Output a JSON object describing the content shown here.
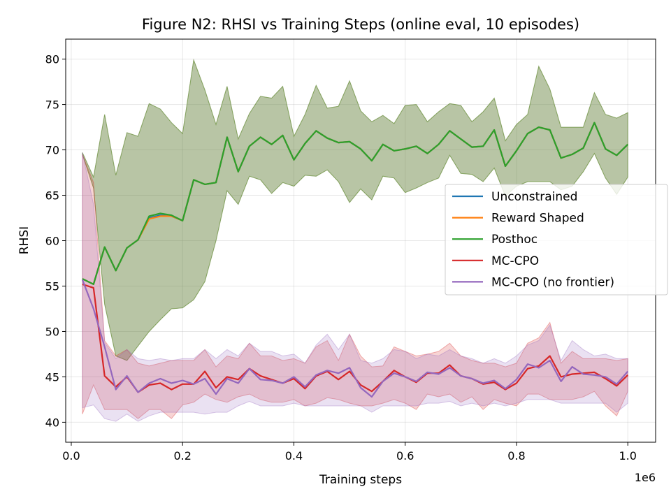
{
  "chart_data": {
    "type": "line",
    "title": "Figure N2: RHSI vs Training Steps (online eval, 10 episodes)",
    "xlabel": "Training steps",
    "ylabel": "RHSI",
    "x_offset_label": "1e6",
    "xlim": [
      -0.01,
      1.05
    ],
    "ylim": [
      37.8,
      82.2
    ],
    "xticks": [
      0.0,
      0.2,
      0.4,
      0.6,
      0.8,
      1.0
    ],
    "xtick_labels": [
      "0.0",
      "0.2",
      "0.4",
      "0.6",
      "0.8",
      "1.0"
    ],
    "yticks": [
      40,
      45,
      50,
      55,
      60,
      65,
      70,
      75,
      80
    ],
    "ytick_labels": [
      "40",
      "45",
      "50",
      "55",
      "60",
      "65",
      "70",
      "75",
      "80"
    ],
    "grid": true,
    "legend_position": "center-right",
    "x": [
      0.02,
      0.04,
      0.06,
      0.08,
      0.1,
      0.12,
      0.14,
      0.16,
      0.18,
      0.2,
      0.22,
      0.24,
      0.26,
      0.28,
      0.3,
      0.32,
      0.34,
      0.36,
      0.38,
      0.4,
      0.42,
      0.44,
      0.46,
      0.48,
      0.5,
      0.52,
      0.54,
      0.56,
      0.58,
      0.6,
      0.62,
      0.64,
      0.66,
      0.68,
      0.7,
      0.72,
      0.74,
      0.76,
      0.78,
      0.8,
      0.82,
      0.84,
      0.86,
      0.88,
      0.9,
      0.92,
      0.94,
      0.96,
      0.98,
      1.0
    ],
    "series": [
      {
        "name": "Unconstrained",
        "color": "#1f77b4",
        "values": [
          55.8,
          55.2,
          59.3,
          56.7,
          59.2,
          60.1,
          62.5,
          62.8,
          62.7,
          62.2,
          66.7,
          66.2,
          66.4,
          71.4,
          67.6,
          70.4,
          71.4,
          70.6,
          71.6,
          68.9,
          70.7,
          72.1,
          71.3,
          70.8,
          70.9,
          70.1,
          68.8,
          70.6,
          69.9,
          70.1,
          70.4,
          69.6,
          70.6,
          72.1,
          71.2,
          70.3,
          70.4,
          72.2,
          68.2,
          69.9,
          71.8,
          72.5,
          72.2,
          69.1,
          69.5,
          70.2,
          73.0,
          70.1,
          69.4,
          70.6
        ],
        "lower": [
          69.5,
          65.8,
          53.0,
          47.3,
          46.8,
          48.4,
          50.0,
          51.3,
          52.5,
          52.6,
          53.5,
          55.5,
          60.0,
          65.5,
          64.0,
          67.1,
          66.7,
          65.2,
          66.4,
          66.0,
          67.2,
          67.1,
          67.8,
          66.5,
          64.2,
          65.7,
          64.5,
          67.1,
          66.9,
          65.3,
          65.8,
          66.4,
          66.9,
          69.4,
          67.4,
          67.3,
          66.5,
          68.0,
          64.9,
          66.0,
          66.5,
          66.5,
          66.5,
          65.6,
          66.0,
          67.6,
          69.6,
          66.9,
          65.1,
          67.0
        ],
        "upper": [
          69.7,
          67.0,
          73.9,
          67.2,
          71.9,
          71.5,
          75.1,
          74.5,
          73.0,
          71.8,
          79.9,
          76.6,
          72.8,
          77.0,
          71.2,
          74.0,
          75.9,
          75.7,
          77.0,
          71.5,
          73.9,
          77.1,
          74.6,
          74.8,
          77.6,
          74.3,
          73.1,
          73.8,
          72.9,
          74.9,
          75.0,
          73.1,
          74.2,
          75.1,
          74.9,
          73.1,
          74.2,
          75.7,
          71.0,
          72.8,
          73.9,
          79.2,
          76.7,
          72.5,
          72.5,
          72.5,
          76.3,
          73.9,
          73.5,
          74.1
        ]
      },
      {
        "name": "Reward Shaped",
        "color": "#ff7f0e",
        "values": [
          55.8,
          55.2,
          59.3,
          56.7,
          59.2,
          60.1,
          62.4,
          62.7,
          62.7,
          62.2,
          66.7,
          66.2,
          66.4,
          71.4,
          67.6,
          70.4,
          71.4,
          70.6,
          71.6,
          68.9,
          70.7,
          72.1,
          71.3,
          70.8,
          70.9,
          70.1,
          68.8,
          70.6,
          69.9,
          70.1,
          70.4,
          69.6,
          70.6,
          72.1,
          71.2,
          70.3,
          70.4,
          72.2,
          68.2,
          69.9,
          71.8,
          72.5,
          72.2,
          69.1,
          69.5,
          70.2,
          73.0,
          70.1,
          69.4,
          70.6
        ],
        "lower": [
          69.5,
          65.8,
          53.0,
          47.3,
          46.8,
          48.4,
          50.0,
          51.3,
          52.5,
          52.6,
          53.5,
          55.5,
          60.0,
          65.5,
          64.0,
          67.1,
          66.7,
          65.2,
          66.4,
          66.0,
          67.2,
          67.1,
          67.8,
          66.5,
          64.2,
          65.7,
          64.5,
          67.1,
          66.9,
          65.3,
          65.8,
          66.4,
          66.9,
          69.4,
          67.4,
          67.3,
          66.5,
          68.0,
          64.9,
          66.0,
          66.5,
          66.5,
          66.5,
          65.6,
          66.0,
          67.6,
          69.6,
          66.9,
          65.1,
          67.0
        ],
        "upper": [
          69.7,
          67.0,
          73.9,
          67.2,
          71.9,
          71.5,
          75.1,
          74.5,
          73.0,
          71.8,
          79.9,
          76.6,
          72.8,
          77.0,
          71.2,
          74.0,
          75.9,
          75.7,
          77.0,
          71.5,
          73.9,
          77.1,
          74.6,
          74.8,
          77.6,
          74.3,
          73.1,
          73.8,
          72.9,
          74.9,
          75.0,
          73.1,
          74.2,
          75.1,
          74.9,
          73.1,
          74.2,
          75.7,
          71.0,
          72.8,
          73.9,
          79.2,
          76.7,
          72.5,
          72.5,
          72.5,
          76.3,
          73.9,
          73.5,
          74.1
        ]
      },
      {
        "name": "Posthoc",
        "color": "#2ca02c",
        "values": [
          55.8,
          55.2,
          59.3,
          56.7,
          59.2,
          60.1,
          62.7,
          63.0,
          62.8,
          62.2,
          66.7,
          66.2,
          66.4,
          71.4,
          67.6,
          70.4,
          71.4,
          70.6,
          71.6,
          68.9,
          70.7,
          72.1,
          71.3,
          70.8,
          70.9,
          70.1,
          68.8,
          70.6,
          69.9,
          70.1,
          70.4,
          69.6,
          70.6,
          72.1,
          71.2,
          70.3,
          70.4,
          72.2,
          68.2,
          69.9,
          71.8,
          72.5,
          72.2,
          69.1,
          69.5,
          70.2,
          73.0,
          70.1,
          69.4,
          70.6
        ],
        "lower": [
          69.5,
          65.8,
          53.0,
          47.3,
          46.8,
          48.4,
          50.0,
          51.3,
          52.5,
          52.6,
          53.5,
          55.5,
          60.0,
          65.5,
          64.0,
          67.1,
          66.7,
          65.2,
          66.4,
          66.0,
          67.2,
          67.1,
          67.8,
          66.5,
          64.2,
          65.7,
          64.5,
          67.1,
          66.9,
          65.3,
          65.8,
          66.4,
          66.9,
          69.4,
          67.4,
          67.3,
          66.5,
          68.0,
          64.9,
          66.0,
          66.5,
          66.5,
          66.5,
          65.6,
          66.0,
          67.6,
          69.6,
          66.9,
          65.1,
          67.0
        ],
        "upper": [
          69.7,
          67.0,
          73.9,
          67.2,
          71.9,
          71.5,
          75.1,
          74.5,
          73.0,
          71.8,
          79.9,
          76.6,
          72.8,
          77.0,
          71.2,
          74.0,
          75.9,
          75.7,
          77.0,
          71.5,
          73.9,
          77.1,
          74.6,
          74.8,
          77.6,
          74.3,
          73.1,
          73.8,
          72.9,
          74.9,
          75.0,
          73.1,
          74.2,
          75.1,
          74.9,
          73.1,
          74.2,
          75.7,
          71.0,
          72.8,
          73.9,
          79.2,
          76.7,
          72.5,
          72.5,
          72.5,
          76.3,
          73.9,
          73.5,
          74.1
        ]
      },
      {
        "name": "MC-CPO",
        "color": "#d62728",
        "values": [
          55.2,
          54.8,
          45.1,
          43.9,
          45.0,
          43.3,
          44.1,
          44.3,
          43.6,
          44.2,
          44.2,
          45.6,
          43.8,
          45.0,
          44.7,
          45.9,
          45.1,
          44.7,
          44.3,
          44.8,
          43.7,
          45.1,
          45.6,
          44.7,
          45.6,
          44.1,
          43.4,
          44.5,
          45.7,
          45.0,
          44.4,
          45.4,
          45.4,
          46.3,
          45.1,
          44.8,
          44.2,
          44.4,
          43.6,
          44.3,
          45.9,
          46.2,
          47.3,
          45.0,
          45.3,
          45.4,
          45.5,
          44.8,
          44.0,
          45.2
        ],
        "lower": [
          40.9,
          44.1,
          41.4,
          41.4,
          41.4,
          40.4,
          41.4,
          41.4,
          40.4,
          41.9,
          42.2,
          43.1,
          42.5,
          42.2,
          42.8,
          43.1,
          42.5,
          42.2,
          42.2,
          42.5,
          41.8,
          42.1,
          42.7,
          42.5,
          42.1,
          41.8,
          41.8,
          42.1,
          42.5,
          42.1,
          41.4,
          43.1,
          42.8,
          43.1,
          42.2,
          42.8,
          41.4,
          42.5,
          42.1,
          41.8,
          43.1,
          43.1,
          42.5,
          42.5,
          42.5,
          42.8,
          43.4,
          41.8,
          40.7,
          43.4
        ],
        "upper": [
          69.5,
          66.4,
          49.0,
          47.3,
          48.0,
          46.5,
          46.2,
          46.5,
          46.8,
          46.8,
          46.8,
          48.0,
          46.1,
          47.3,
          47.0,
          48.7,
          47.3,
          47.3,
          46.8,
          47.0,
          46.5,
          48.3,
          49.0,
          46.8,
          49.7,
          47.3,
          46.1,
          46.2,
          48.3,
          47.8,
          47.3,
          47.5,
          47.8,
          48.7,
          47.3,
          46.8,
          46.5,
          46.5,
          46.1,
          46.5,
          48.7,
          49.3,
          51.0,
          46.5,
          47.8,
          47.0,
          47.0,
          47.0,
          46.8,
          47.0
        ]
      },
      {
        "name": "MC-CPO (no frontier)",
        "color": "#9467bd",
        "values": [
          55.7,
          52.5,
          48.3,
          43.6,
          45.1,
          43.3,
          44.3,
          44.8,
          44.3,
          44.6,
          44.2,
          44.8,
          43.1,
          44.8,
          44.3,
          45.9,
          44.7,
          44.6,
          44.3,
          45.0,
          43.9,
          45.2,
          45.7,
          45.4,
          46.0,
          43.8,
          42.8,
          44.5,
          45.4,
          45.0,
          44.5,
          45.5,
          45.3,
          46.0,
          45.1,
          44.8,
          44.3,
          44.6,
          43.7,
          44.7,
          46.4,
          46.0,
          46.8,
          44.5,
          46.1,
          45.3,
          45.2,
          45.0,
          44.2,
          45.6
        ],
        "lower": [
          41.6,
          41.9,
          40.4,
          40.1,
          40.9,
          40.1,
          40.7,
          41.1,
          41.1,
          41.1,
          41.1,
          40.9,
          41.1,
          41.1,
          41.8,
          42.3,
          41.8,
          41.8,
          41.8,
          42.1,
          41.8,
          41.8,
          41.8,
          41.8,
          41.8,
          41.8,
          41.1,
          41.8,
          41.8,
          41.8,
          41.8,
          42.1,
          42.1,
          42.3,
          41.8,
          42.1,
          41.8,
          42.1,
          41.8,
          42.1,
          42.5,
          42.5,
          42.5,
          42.1,
          42.1,
          42.1,
          42.1,
          42.1,
          41.1,
          42.1
        ],
        "upper": [
          69.7,
          64.0,
          48.8,
          47.0,
          48.0,
          47.0,
          46.8,
          47.0,
          46.8,
          47.0,
          47.0,
          48.0,
          47.0,
          48.0,
          47.3,
          48.7,
          47.8,
          47.8,
          47.3,
          47.5,
          46.5,
          48.5,
          49.7,
          48.0,
          49.7,
          46.8,
          46.5,
          47.0,
          48.0,
          47.8,
          47.0,
          47.5,
          47.3,
          48.0,
          47.3,
          47.0,
          46.5,
          47.0,
          46.5,
          47.3,
          48.5,
          49.0,
          50.7,
          46.8,
          49.0,
          48.0,
          47.3,
          47.5,
          47.0,
          47.0
        ]
      }
    ]
  }
}
